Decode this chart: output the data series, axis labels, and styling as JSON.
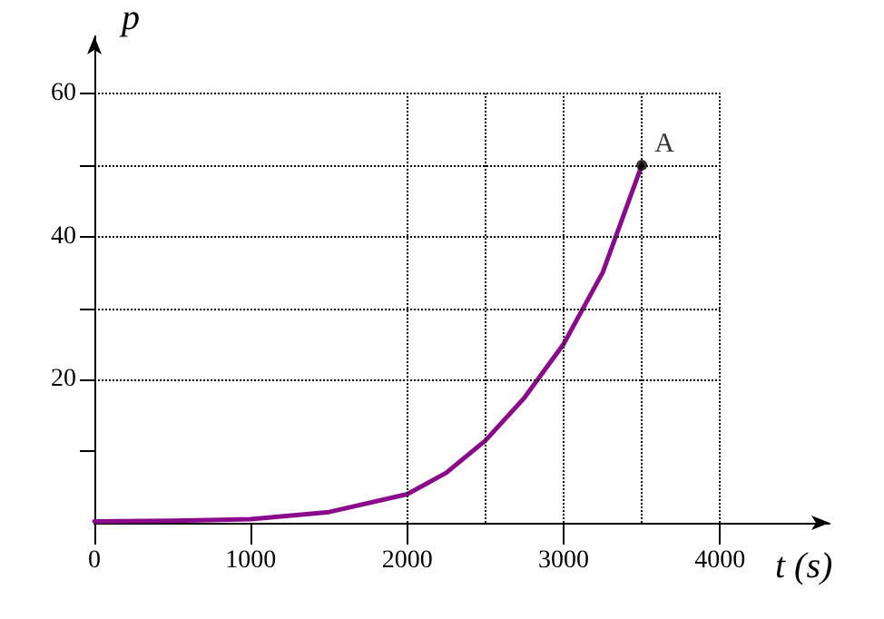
{
  "chart_data": {
    "type": "line",
    "xlabel": "t (s)",
    "ylabel": "p",
    "x": [
      0,
      500,
      1000,
      1500,
      2000,
      2250,
      2500,
      2750,
      3000,
      3250,
      3500
    ],
    "series": [
      {
        "color": "#8b0a8b",
        "values": [
          0.2,
          0.3,
          0.5,
          1.5,
          4,
          7,
          11.5,
          17.5,
          25,
          35,
          50
        ]
      }
    ],
    "xlim": [
      0,
      4700
    ],
    "ylim": [
      0,
      68
    ],
    "xticks": [
      0,
      1000,
      2000,
      3000,
      4000
    ],
    "yticks": [
      {
        "value": 10,
        "label": null
      },
      20,
      {
        "value": 30,
        "label": null
      },
      40,
      {
        "value": 50,
        "label": null
      },
      60
    ],
    "ref_lines": [
      {
        "axis": "y",
        "value": 20,
        "line_style": "dotted"
      },
      {
        "axis": "y",
        "value": 30,
        "line_style": "dotted"
      },
      {
        "axis": "y",
        "value": 40,
        "line_style": "dotted"
      },
      {
        "axis": "y",
        "value": 50,
        "line_style": "dotted"
      },
      {
        "axis": "y",
        "value": 60,
        "line_style": "dotted"
      },
      {
        "axis": "x",
        "value": 2000,
        "line_style": "dotted"
      },
      {
        "axis": "x",
        "value": 2500,
        "line_style": "dotted"
      },
      {
        "axis": "x",
        "value": 3000,
        "line_style": "dotted"
      },
      {
        "axis": "x",
        "value": 3500,
        "line_style": "dotted"
      },
      {
        "axis": "x",
        "value": 4000,
        "line_style": "dotted"
      }
    ],
    "annotations": [
      {
        "text": "A",
        "x": 3500,
        "y": 50
      }
    ],
    "marker": "none",
    "line_style": "solid"
  }
}
